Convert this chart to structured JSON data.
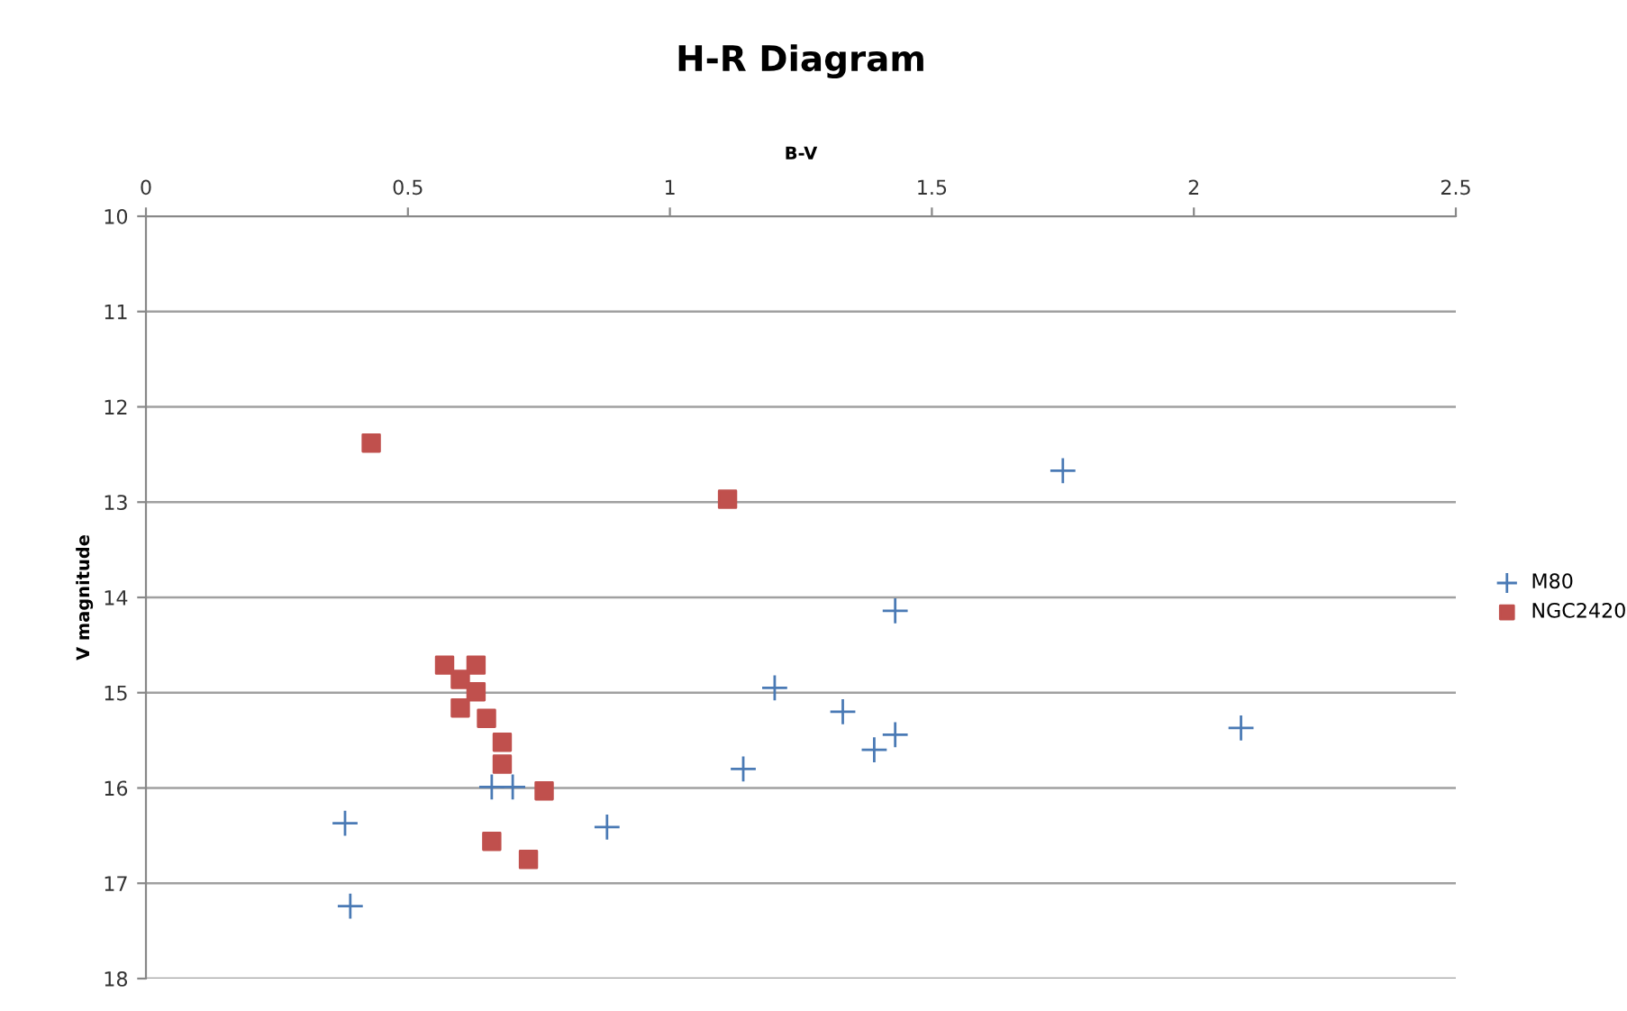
{
  "chart_data": {
    "type": "scatter",
    "title": "H-R Diagram",
    "xlabel": "B-V",
    "ylabel": "V magnitude",
    "xlim": [
      0,
      2.5
    ],
    "xticks": [
      0,
      0.5,
      1,
      1.5,
      2,
      2.5
    ],
    "ylim": [
      18,
      10
    ],
    "yticks": [
      10,
      11,
      12,
      13,
      14,
      15,
      16,
      17,
      18
    ],
    "grid": "y",
    "legend": "right",
    "series": [
      {
        "name": "M80",
        "color": "#4a7ab5",
        "marker": "cross",
        "x": [
          1.75,
          1.43,
          1.2,
          1.33,
          1.43,
          1.39,
          1.14,
          2.09,
          0.66,
          0.7,
          0.38,
          0.88,
          0.39
        ],
        "values": [
          12.67,
          14.14,
          14.95,
          15.2,
          15.44,
          15.6,
          15.8,
          15.37,
          15.99,
          15.99,
          16.37,
          16.41,
          17.24
        ]
      },
      {
        "name": "NGC2420",
        "color": "#c0504d",
        "marker": "square",
        "x": [
          0.43,
          1.11,
          0.57,
          0.63,
          0.6,
          0.63,
          0.6,
          0.65,
          0.68,
          0.68,
          0.76,
          0.66,
          0.73
        ],
        "values": [
          12.38,
          12.97,
          14.71,
          14.71,
          14.86,
          14.99,
          15.16,
          15.27,
          15.52,
          15.75,
          16.03,
          16.56,
          16.75
        ]
      }
    ]
  }
}
